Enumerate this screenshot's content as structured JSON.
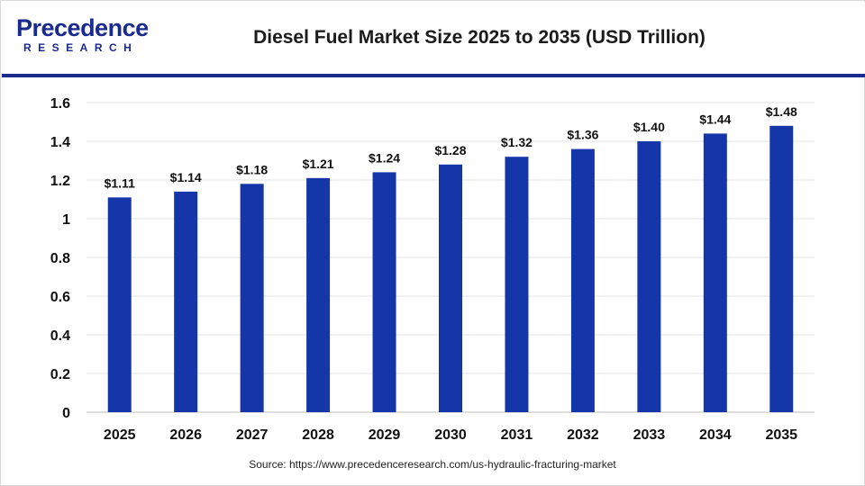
{
  "header": {
    "logo_text": "Precedence",
    "logo_subtext": "RESEARCH",
    "title": "Diesel Fuel Market Size 2025 to 2035 (USD Trillion)"
  },
  "source": "Source: https://www.precedenceresearch.com/us-hydraulic-fracturing-market",
  "colors": {
    "bar": "#1536a8",
    "accent": "#1a2a8f"
  },
  "chart_data": {
    "type": "bar",
    "title": "Diesel Fuel Market Size 2025 to 2035 (USD Trillion)",
    "categories": [
      "2025",
      "2026",
      "2027",
      "2028",
      "2029",
      "2030",
      "2031",
      "2032",
      "2033",
      "2034",
      "2035"
    ],
    "values": [
      1.11,
      1.14,
      1.18,
      1.21,
      1.24,
      1.28,
      1.32,
      1.36,
      1.4,
      1.44,
      1.48
    ],
    "data_labels": [
      "$1.11",
      "$1.14",
      "$1.18",
      "$1.21",
      "$1.24",
      "$1.28",
      "$1.32",
      "$1.36",
      "$1.40",
      "$1.44",
      "$1.48"
    ],
    "y_ticks": [
      "0",
      "0.2",
      "0.4",
      "0.6",
      "0.8",
      "1",
      "1.2",
      "1.4",
      "1.6"
    ],
    "ylim": [
      0,
      1.6
    ],
    "xlabel": "",
    "ylabel": "",
    "grid": true,
    "legend": "none"
  }
}
